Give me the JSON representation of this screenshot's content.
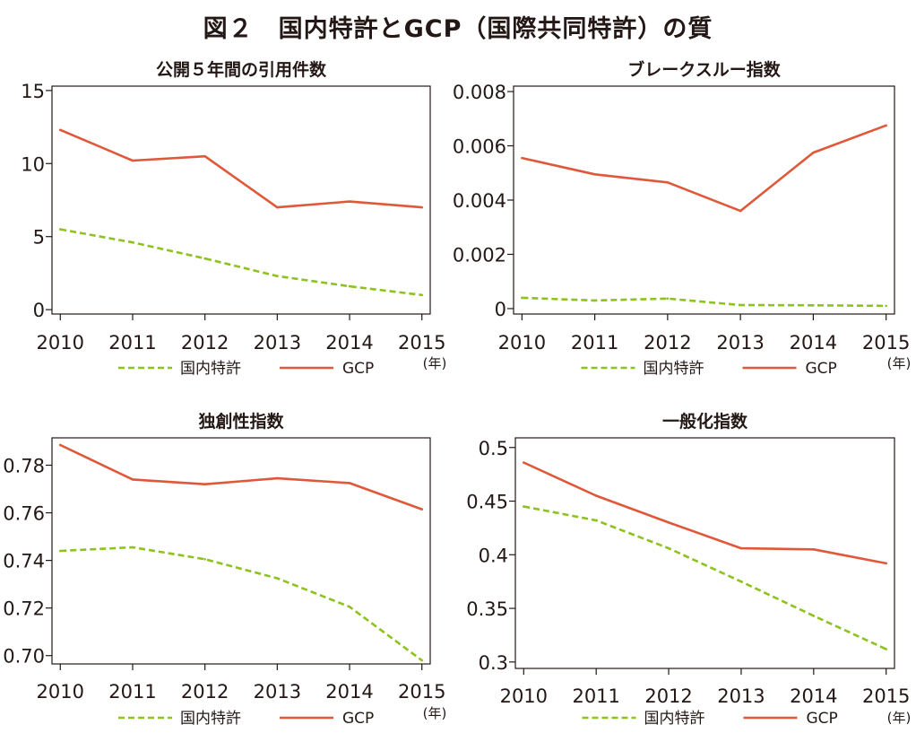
{
  "title": "図２　国内特許とGCP（国際共同特許）の質",
  "year_unit": "(年)",
  "legend": {
    "domestic": "国内特許",
    "gcp": "GCP"
  },
  "colors": {
    "domestic": "#8dc21f",
    "gcp": "#e0583a",
    "axis": "#231815"
  },
  "chart_data": [
    {
      "type": "line",
      "title": "公開５年間の引用件数",
      "x": [
        2010,
        2011,
        2012,
        2013,
        2014,
        2015
      ],
      "xticks": [
        "2010",
        "2011",
        "2012",
        "2013",
        "2014",
        "2015"
      ],
      "yticks": [
        "0",
        "5",
        "10",
        "15"
      ],
      "ytick_values": [
        0,
        5,
        10,
        15
      ],
      "ylim": [
        -0.3,
        15.3
      ],
      "series": [
        {
          "name": "国内特許",
          "values": [
            5.5,
            4.6,
            3.5,
            2.3,
            1.6,
            1.0
          ]
        },
        {
          "name": "GCP",
          "values": [
            12.3,
            10.2,
            10.5,
            7.0,
            7.4,
            7.0
          ]
        }
      ]
    },
    {
      "type": "line",
      "title": "ブレークスルー指数",
      "x": [
        2010,
        2011,
        2012,
        2013,
        2014,
        2015
      ],
      "xticks": [
        "2010",
        "2011",
        "2012",
        "2013",
        "2014",
        "2015"
      ],
      "yticks": [
        "0",
        "0.002",
        "0.004",
        "0.006",
        "0.008"
      ],
      "ytick_values": [
        0,
        0.002,
        0.004,
        0.006,
        0.008
      ],
      "ylim": [
        -0.0002,
        0.0082
      ],
      "series": [
        {
          "name": "国内特許",
          "values": [
            0.0004,
            0.0003,
            0.00037,
            0.00013,
            0.00012,
            0.0001
          ]
        },
        {
          "name": "GCP",
          "values": [
            0.00555,
            0.00495,
            0.00465,
            0.0036,
            0.00575,
            0.00675
          ]
        }
      ]
    },
    {
      "type": "line",
      "title": "独創性指数",
      "x": [
        2010,
        2011,
        2012,
        2013,
        2014,
        2015
      ],
      "xticks": [
        "2010",
        "2011",
        "2012",
        "2013",
        "2014",
        "2015"
      ],
      "yticks": [
        "0.70",
        "0.72",
        "0.74",
        "0.76",
        "0.78"
      ],
      "ytick_values": [
        0.7,
        0.72,
        0.74,
        0.76,
        0.78
      ],
      "ylim": [
        0.6965,
        0.7915
      ],
      "series": [
        {
          "name": "国内特許",
          "values": [
            0.744,
            0.7455,
            0.7405,
            0.7325,
            0.7205,
            0.698
          ]
        },
        {
          "name": "GCP",
          "values": [
            0.7885,
            0.774,
            0.772,
            0.7745,
            0.7725,
            0.7615
          ]
        }
      ]
    },
    {
      "type": "line",
      "title": "一般化指数",
      "x": [
        2010,
        2011,
        2012,
        2013,
        2014,
        2015
      ],
      "xticks": [
        "2010",
        "2011",
        "2012",
        "2013",
        "2014",
        "2015"
      ],
      "yticks": [
        "0.3",
        "0.35",
        "0.4",
        "0.45",
        "0.5"
      ],
      "ytick_values": [
        0.3,
        0.35,
        0.4,
        0.45,
        0.5
      ],
      "ylim": [
        0.294,
        0.509
      ],
      "series": [
        {
          "name": "国内特許",
          "values": [
            0.445,
            0.432,
            0.406,
            0.375,
            0.343,
            0.312
          ]
        },
        {
          "name": "GCP",
          "values": [
            0.486,
            0.455,
            0.43,
            0.406,
            0.405,
            0.392
          ]
        }
      ]
    }
  ]
}
